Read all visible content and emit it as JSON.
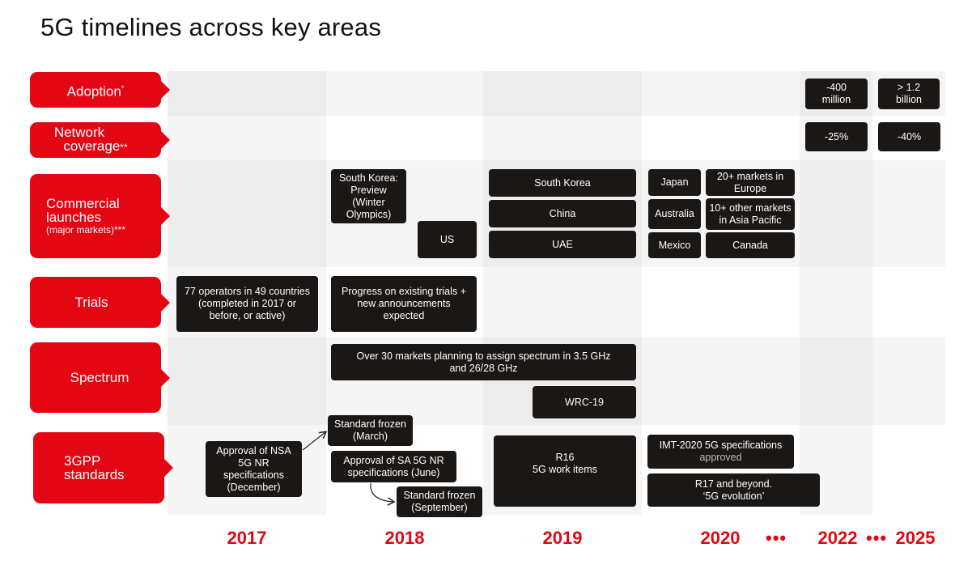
{
  "title": "5G timelines across key areas",
  "rows": {
    "adoption": {
      "label": "Adoption",
      "mark": "*"
    },
    "coverage": {
      "label": "Network coverage",
      "line1": "Network",
      "line2": "coverage",
      "mark": "**"
    },
    "launches": {
      "line1": "Commercial",
      "line2": "launches",
      "sub": "(major markets)",
      "mark": "***"
    },
    "trials": {
      "label": "Trials"
    },
    "spectrum": {
      "label": "Spectrum"
    },
    "standards": {
      "line1": "3GPP",
      "line2": "standards"
    }
  },
  "years": [
    "2017",
    "2018",
    "2019",
    "2020",
    "2022",
    "2025"
  ],
  "ellipsis": "•••",
  "boxes": {
    "adoption_2022": [
      "-400",
      "million"
    ],
    "adoption_2025": [
      "> 1.2",
      "billion"
    ],
    "coverage_2022": "-25%",
    "coverage_2025": "-40%",
    "sk_preview": [
      "South Korea:",
      "Preview (Winter",
      "Olympics)"
    ],
    "us": "US",
    "south_korea": "South Korea",
    "china": "China",
    "uae": "UAE",
    "japan": "Japan",
    "australia": "Australia",
    "mexico": "Mexico",
    "europe": [
      "20+ markets in",
      "Europe"
    ],
    "asia_pacific": [
      "10+ other markets",
      "in Asia Pacific"
    ],
    "canada": "Canada",
    "trials_2017": [
      "77 operators in 49 countries",
      "(completed in 2017 or",
      "before, or active)"
    ],
    "trials_2018": [
      "Progress on existing trials +",
      "new announcements",
      "expected"
    ],
    "spectrum_assign": [
      "Over 30 markets planning to assign spectrum in 3.5 GHz",
      "and 26/28 GHz"
    ],
    "wrc": "WRC-19",
    "nsa_approval": [
      "Approval of NSA",
      "5G NR",
      "specifications",
      "(December)"
    ],
    "frozen_march": [
      "Standard frozen",
      "(March)"
    ],
    "sa_approval": [
      "Approval of SA 5G NR",
      "specifications (June)"
    ],
    "frozen_sept": [
      "Standard frozen",
      "(September)"
    ],
    "r16": [
      "R16",
      "5G work items"
    ],
    "imt2020": [
      "IMT-2020 5G specifications",
      "approved"
    ],
    "r17": [
      "R17 and beyond.",
      "‘5G evolution’"
    ]
  }
}
